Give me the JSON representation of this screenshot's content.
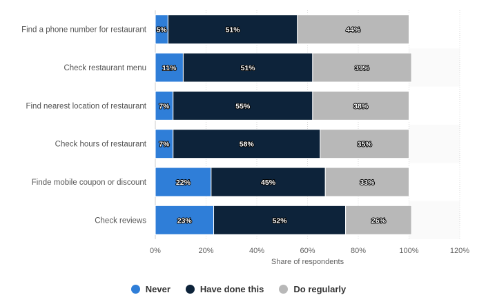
{
  "chart_data": {
    "type": "bar",
    "orientation": "horizontal",
    "stacked": true,
    "title": "",
    "xlabel": "Share of respondents",
    "ylabel": "",
    "xlim": [
      0,
      120
    ],
    "x_ticks": [
      0,
      20,
      40,
      60,
      80,
      100,
      120
    ],
    "x_tick_labels": [
      "0%",
      "20%",
      "40%",
      "60%",
      "80%",
      "100%",
      "120%"
    ],
    "grid": true,
    "legend_position": "bottom",
    "categories": [
      "Find a phone number for restaurant",
      "Check restaurant menu",
      "Find nearest location of restaurant",
      "Check hours of restaurant",
      "Finde mobile coupon or discount",
      "Check reviews"
    ],
    "series": [
      {
        "name": "Never",
        "color": "#2f7ed8",
        "values": [
          5,
          11,
          7,
          7,
          22,
          23
        ],
        "labels": [
          "5%",
          "11%",
          "7%",
          "7%",
          "22%",
          "23%"
        ]
      },
      {
        "name": "Have done this",
        "color": "#0d233a",
        "values": [
          51,
          51,
          55,
          58,
          45,
          52
        ],
        "labels": [
          "51%",
          "51%",
          "55%",
          "58%",
          "45%",
          "52%"
        ]
      },
      {
        "name": "Do regularly",
        "color": "#b8b8b8",
        "values": [
          44,
          39,
          38,
          35,
          33,
          26
        ],
        "labels": [
          "44%",
          "39%",
          "38%",
          "35%",
          "33%",
          "26%"
        ]
      }
    ]
  }
}
